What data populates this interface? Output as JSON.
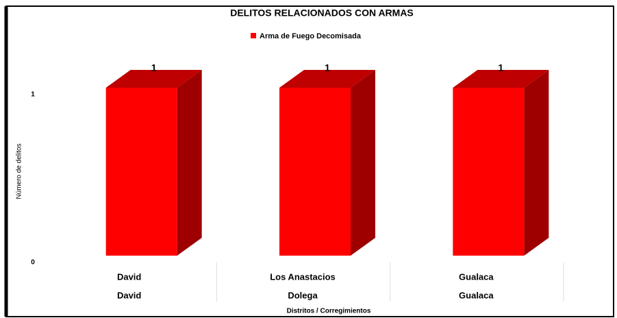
{
  "chart_data": {
    "type": "bar3d",
    "title": "DELITOS RELACIONADOS CON ARMAS",
    "y_label": "Número de delitos",
    "x_label": "Distritos / Corregimientos",
    "categories": [
      "David",
      "Los Anastacios",
      "Gualaca"
    ],
    "groups": [
      "David",
      "Dolega",
      "Gualaca"
    ],
    "series": [
      {
        "name": "Arma de Fuego Decomisada",
        "color": "#ff0000",
        "values": [
          1,
          1,
          1
        ]
      }
    ],
    "ylim": [
      0,
      1
    ],
    "yticks": [
      0,
      1
    ],
    "legend": "top"
  }
}
